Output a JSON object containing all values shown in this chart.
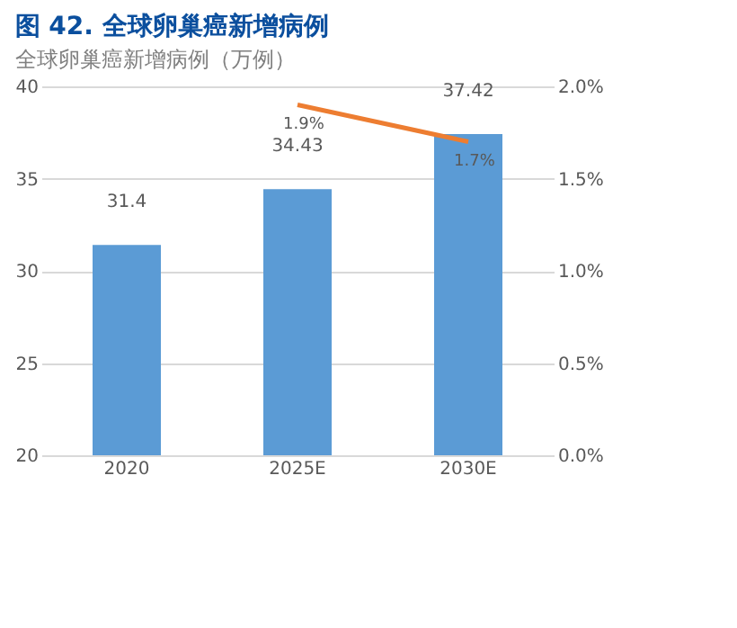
{
  "chart_data": {
    "type": "bar",
    "title": "图 42. 全球卵巢癌新增病例",
    "subtitle": "全球卵巢癌新增病例（万例）",
    "categories": [
      "2020",
      "2025E",
      "2030E"
    ],
    "series": [
      {
        "color": "#5b9bd5",
        "values": [
          31.4,
          34.43,
          37.42
        ],
        "value_labels": [
          "31.4",
          "34.43",
          "37.42"
        ]
      },
      {
        "type": "line",
        "axis": "y2",
        "color": "#ed7d31",
        "values": [
          null,
          1.9,
          1.7
        ],
        "value_labels": [
          null,
          "1.9%",
          "1.7%"
        ]
      }
    ],
    "ylim": [
      20,
      40
    ],
    "yticks": [
      20,
      25,
      30,
      35,
      40
    ],
    "y2lim": [
      0,
      2
    ],
    "y2ticks": [
      {
        "value": 0,
        "label": "0.0%"
      },
      {
        "value": 0.5,
        "label": "0.5%"
      },
      {
        "value": 1,
        "label": "1.0%"
      },
      {
        "value": 1.5,
        "label": "1.5%"
      },
      {
        "value": 2,
        "label": "2.0%"
      }
    ],
    "grid": "y"
  }
}
